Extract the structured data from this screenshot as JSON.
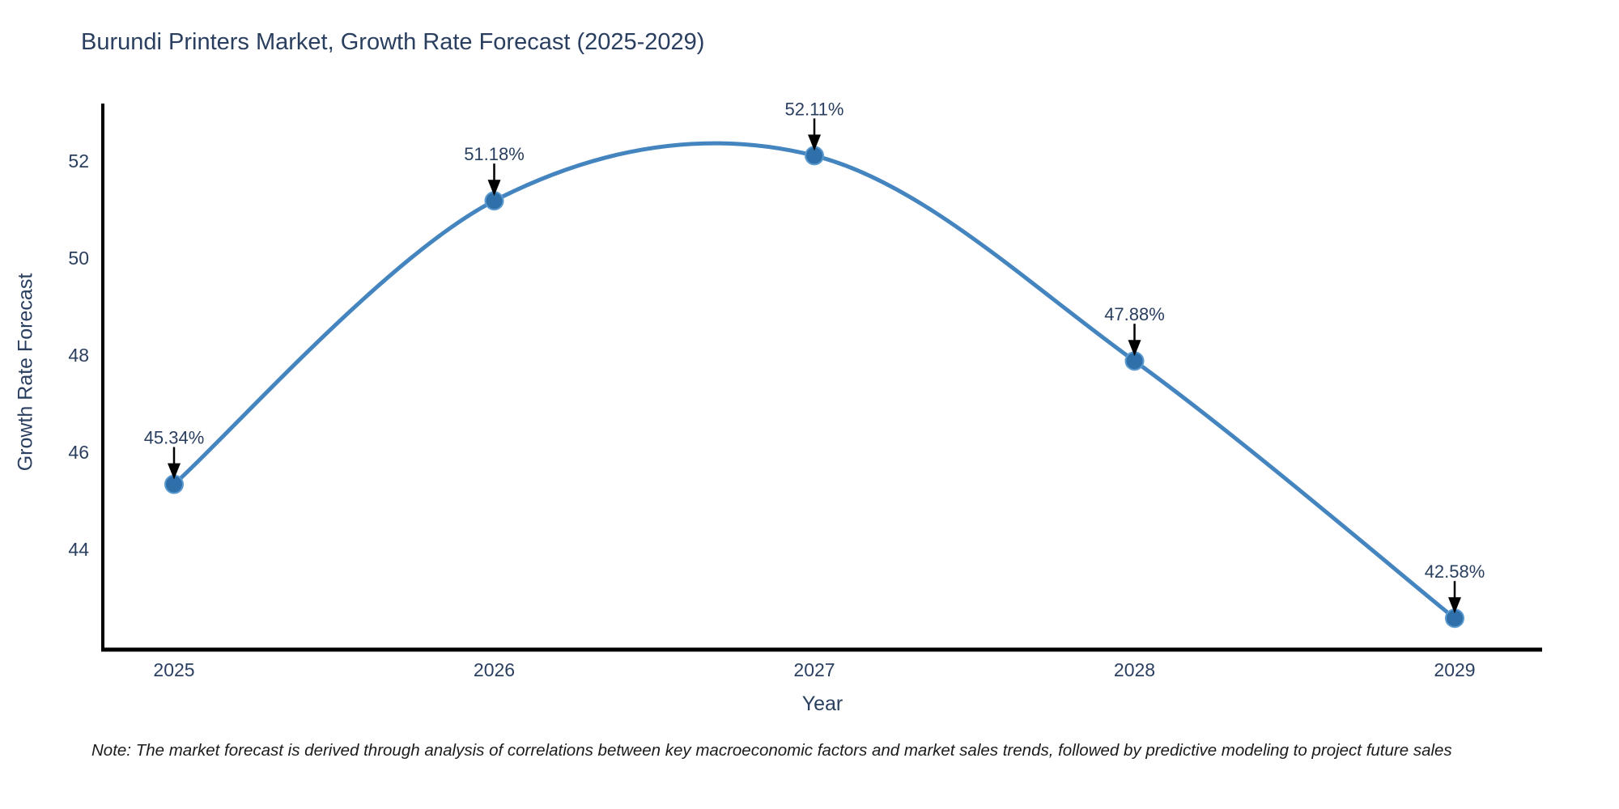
{
  "chart_data": {
    "type": "line",
    "title": "Burundi Printers Market, Growth Rate Forecast (2025-2029)",
    "xlabel": "Year",
    "ylabel": "Growth Rate Forecast",
    "categories": [
      "2025",
      "2026",
      "2027",
      "2028",
      "2029"
    ],
    "series": [
      {
        "name": "Growth Rate Forecast",
        "values": [
          45.34,
          51.18,
          52.11,
          47.88,
          42.58
        ],
        "point_labels": [
          "45.34%",
          "51.18%",
          "52.11%",
          "47.88%",
          "42.58%"
        ]
      }
    ],
    "yticks": [
      52,
      50,
      48,
      46,
      44
    ],
    "ylim": [
      41.9,
      53.2
    ],
    "line_shape": "spline",
    "markers": true,
    "grid": false,
    "legend_position": "none",
    "annotations_style": "value labels above points with downward black arrows",
    "note": "Note: The market forecast is derived through analysis of correlations between key macroeconomic factors and market sales trends, followed by predictive modeling to project future sales",
    "colors": {
      "line": "#4484bf",
      "marker_fill": "#2f70ab",
      "marker_edge": "#5b99cf",
      "axis_line": "#000000",
      "tick_text": "#2a3f5f",
      "title_text": "#2a3f5f",
      "annotation_text": "#2a3f5f",
      "annotation_arrow": "#000000",
      "note_text": "#1b1b1b",
      "background": "#ffffff"
    }
  }
}
